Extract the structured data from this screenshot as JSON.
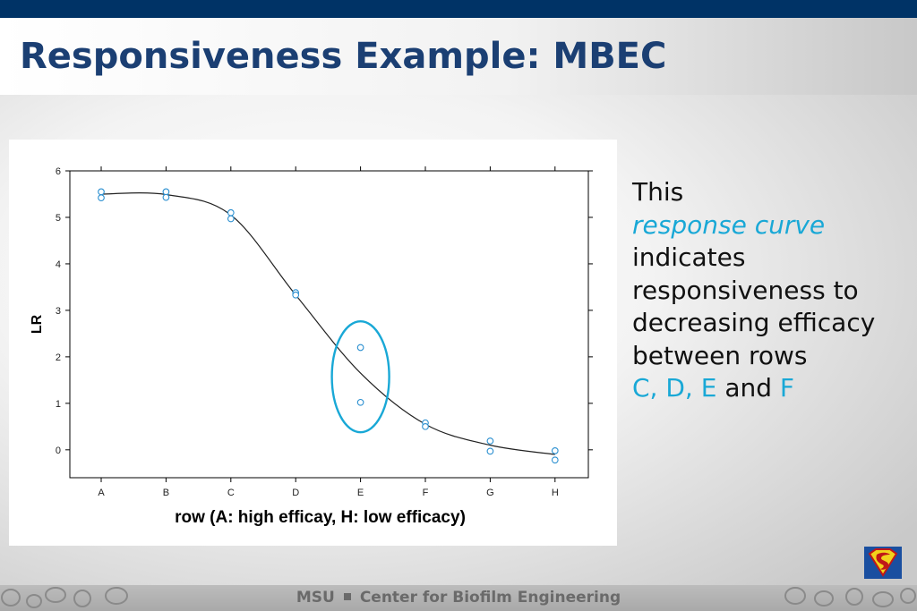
{
  "header": {
    "title": "Responsiveness Example: MBEC"
  },
  "side_text": {
    "line1": "This",
    "line2": "response curve",
    "line3": "indicates",
    "line4": "responsiveness to",
    "line5": "decreasing efficacy",
    "line6": "between rows",
    "rows_highlight": "C, D, E",
    "and_word": "and",
    "row_f": "F"
  },
  "footer": {
    "left": "MSU",
    "right": "Center for Biofilm Engineering"
  },
  "colors": {
    "accent_blue": "#19a8d6",
    "title_blue": "#1b3f73",
    "top_bar": "#003366"
  },
  "icons": {
    "logo": "superman-shield-icon"
  },
  "chart_data": {
    "type": "scatter",
    "categories": [
      "A",
      "B",
      "C",
      "D",
      "E",
      "F",
      "G",
      "H"
    ],
    "xlabel": "row (A: high efficay,  H: low efficacy)",
    "ylabel": "LR",
    "ylim": [
      -0.6,
      6
    ],
    "yticks": [
      "0",
      "1",
      "2",
      "3",
      "4",
      "5",
      "6"
    ],
    "points": [
      {
        "x": "A",
        "y": 5.55
      },
      {
        "x": "A",
        "y": 5.42
      },
      {
        "x": "B",
        "y": 5.55
      },
      {
        "x": "B",
        "y": 5.43
      },
      {
        "x": "C",
        "y": 5.1
      },
      {
        "x": "C",
        "y": 4.97
      },
      {
        "x": "D",
        "y": 3.38
      },
      {
        "x": "D",
        "y": 3.33
      },
      {
        "x": "E",
        "y": 2.2
      },
      {
        "x": "E",
        "y": 1.02
      },
      {
        "x": "F",
        "y": 0.58
      },
      {
        "x": "F",
        "y": 0.5
      },
      {
        "x": "G",
        "y": 0.19
      },
      {
        "x": "G",
        "y": -0.03
      },
      {
        "x": "H",
        "y": -0.02
      },
      {
        "x": "H",
        "y": -0.22
      }
    ],
    "fit_line": [
      5.5,
      5.49,
      5.05,
      3.33,
      1.65,
      0.55,
      0.1,
      -0.1
    ],
    "highlight_category": "E",
    "grid": false,
    "legend": "none"
  }
}
